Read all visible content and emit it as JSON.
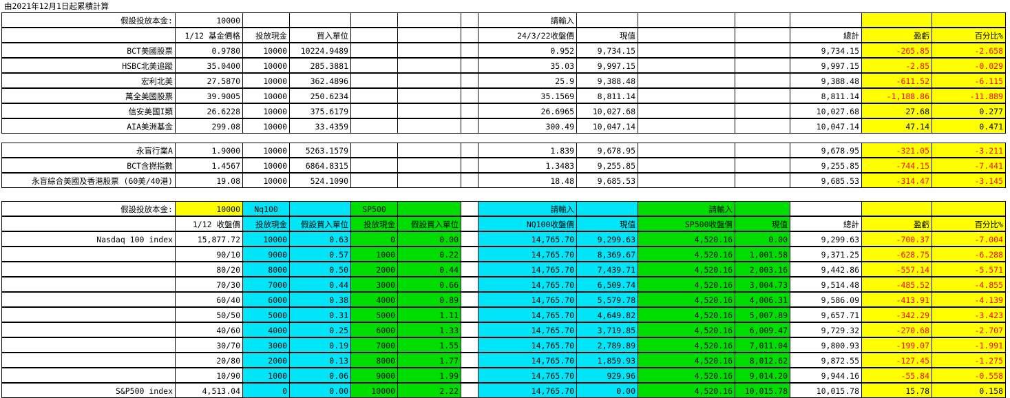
{
  "title": "由2021年12月1日起累積計算",
  "section1": {
    "header1": {
      "label": "假設投放本金:",
      "amount": "10000",
      "input_label": "請輸入"
    },
    "header2": {
      "price_label": "1/12 基金價格",
      "cash_label": "投放現金",
      "units_label": "買入單位",
      "close_label": "24/3/22收盤價",
      "value_label": "現值",
      "total_label": "總計",
      "pl_label": "盈虧",
      "pct_label": "百分比%"
    },
    "rows": [
      {
        "name": "BCT美國股票",
        "price": "0.9780",
        "cash": "10000",
        "units": "10224.9489",
        "close": "0.952",
        "value": "9,734.15",
        "total": "9,734.15",
        "pl": "-265.85",
        "pct": "-2.658"
      },
      {
        "name": "HSBC北美追蹤",
        "price": "35.0400",
        "cash": "10000",
        "units": "285.3881",
        "close": "35.03",
        "value": "9,997.15",
        "total": "9,997.15",
        "pl": "-2.85",
        "pct": "-0.029"
      },
      {
        "name": "宏利北美",
        "price": "27.5870",
        "cash": "10000",
        "units": "362.4896",
        "close": "25.9",
        "value": "9,388.48",
        "total": "9,388.48",
        "pl": "-611.52",
        "pct": "-6.115"
      },
      {
        "name": "萬全美國股票",
        "price": "39.9005",
        "cash": "10000",
        "units": "250.6234",
        "close": "35.1569",
        "value": "8,811.14",
        "total": "8,811.14",
        "pl": "-1,188.86",
        "pct": "-11.889"
      },
      {
        "name": "信安美國I類",
        "price": "26.6228",
        "cash": "10000",
        "units": "375.6179",
        "close": "26.6965",
        "value": "10,027.68",
        "total": "10,027.68",
        "pl": "27.68",
        "pct": "0.277"
      },
      {
        "name": "AIA美洲基金",
        "price": "299.08",
        "cash": "10000",
        "units": "33.4359",
        "close": "300.49",
        "value": "10,047.14",
        "total": "10,047.14",
        "pl": "47.14",
        "pct": "0.471"
      }
    ]
  },
  "section2": {
    "rows": [
      {
        "name": "永盲行業A",
        "price": "1.9000",
        "cash": "10000",
        "units": "5263.1579",
        "close": "1.839",
        "value": "9,678.95",
        "total": "9,678.95",
        "pl": "-321.05",
        "pct": "-3.211"
      },
      {
        "name": "BCT含撚指數",
        "price": "1.4567",
        "cash": "10000",
        "units": "6864.8315",
        "close": "1.3483",
        "value": "9,255.85",
        "total": "9,255.85",
        "pl": "-744.15",
        "pct": "-7.441"
      },
      {
        "name": "永盲綜合美國及香港股票 (60美/40港)",
        "price": "19.08",
        "cash": "10000",
        "units": "524.1090",
        "close": "18.48",
        "value": "9,685.53",
        "total": "9,685.53",
        "pl": "-314.47",
        "pct": "-3.145"
      }
    ]
  },
  "section3": {
    "header1": {
      "label": "假設投放本金:",
      "amount": "10000",
      "nq": "Nq100",
      "sp": "SP500",
      "input1": "請輸入",
      "input2": "請輸入"
    },
    "header2": {
      "close_label": "1/12 收盤價",
      "cash_nq": "投放現金",
      "units_nq": "假設買入單位",
      "cash_sp": "投放現金",
      "units_sp": "假設買入單位",
      "nq_close": "NQ100收盤價",
      "nq_value": "現值",
      "sp_close": "SP500收盤價",
      "sp_value": "現值",
      "total": "總計",
      "pl": "盈虧",
      "pct": "百分比%"
    },
    "rows": [
      {
        "name": "Nasdaq 100 index",
        "close": "15,877.72",
        "cash_nq": "10000",
        "units_nq": "0.63",
        "cash_sp": "0",
        "units_sp": "0.00",
        "nq_close": "14,765.70",
        "nq_value": "9,299.63",
        "sp_close": "4,520.16",
        "sp_value": "0.00",
        "total": "9,299.63",
        "pl": "-700.37",
        "pct": "-7.004"
      },
      {
        "name": "",
        "close": "90/10",
        "cash_nq": "9000",
        "units_nq": "0.57",
        "cash_sp": "1000",
        "units_sp": "0.22",
        "nq_close": "14,765.70",
        "nq_value": "8,369.67",
        "sp_close": "4,520.16",
        "sp_value": "1,001.58",
        "total": "9,371.25",
        "pl": "-628.75",
        "pct": "-6.288"
      },
      {
        "name": "",
        "close": "80/20",
        "cash_nq": "8000",
        "units_nq": "0.50",
        "cash_sp": "2000",
        "units_sp": "0.44",
        "nq_close": "14,765.70",
        "nq_value": "7,439.71",
        "sp_close": "4,520.16",
        "sp_value": "2,003.16",
        "total": "9,442.86",
        "pl": "-557.14",
        "pct": "-5.571"
      },
      {
        "name": "",
        "close": "70/30",
        "cash_nq": "7000",
        "units_nq": "0.44",
        "cash_sp": "3000",
        "units_sp": "0.66",
        "nq_close": "14,765.70",
        "nq_value": "6,509.74",
        "sp_close": "4,520.16",
        "sp_value": "3,004.73",
        "total": "9,514.48",
        "pl": "-485.52",
        "pct": "-4.855"
      },
      {
        "name": "",
        "close": "60/40",
        "cash_nq": "6000",
        "units_nq": "0.38",
        "cash_sp": "4000",
        "units_sp": "0.89",
        "nq_close": "14,765.70",
        "nq_value": "5,579.78",
        "sp_close": "4,520.16",
        "sp_value": "4,006.31",
        "total": "9,586.09",
        "pl": "-413.91",
        "pct": "-4.139"
      },
      {
        "name": "",
        "close": "50/50",
        "cash_nq": "5000",
        "units_nq": "0.31",
        "cash_sp": "5000",
        "units_sp": "1.11",
        "nq_close": "14,765.70",
        "nq_value": "4,649.82",
        "sp_close": "4,520.16",
        "sp_value": "5,007.89",
        "total": "9,657.71",
        "pl": "-342.29",
        "pct": "-3.423"
      },
      {
        "name": "",
        "close": "40/60",
        "cash_nq": "4000",
        "units_nq": "0.25",
        "cash_sp": "6000",
        "units_sp": "1.33",
        "nq_close": "14,765.70",
        "nq_value": "3,719.85",
        "sp_close": "4,520.16",
        "sp_value": "6,009.47",
        "total": "9,729.32",
        "pl": "-270.68",
        "pct": "-2.707"
      },
      {
        "name": "",
        "close": "30/70",
        "cash_nq": "3000",
        "units_nq": "0.19",
        "cash_sp": "7000",
        "units_sp": "1.55",
        "nq_close": "14,765.70",
        "nq_value": "2,789.89",
        "sp_close": "4,520.16",
        "sp_value": "7,011.04",
        "total": "9,800.93",
        "pl": "-199.07",
        "pct": "-1.991"
      },
      {
        "name": "",
        "close": "20/80",
        "cash_nq": "2000",
        "units_nq": "0.13",
        "cash_sp": "8000",
        "units_sp": "1.77",
        "nq_close": "14,765.70",
        "nq_value": "1,859.93",
        "sp_close": "4,520.16",
        "sp_value": "8,012.62",
        "total": "9,872.55",
        "pl": "-127.45",
        "pct": "-1.275"
      },
      {
        "name": "",
        "close": "10/90",
        "cash_nq": "1000",
        "units_nq": "0.06",
        "cash_sp": "9000",
        "units_sp": "1.99",
        "nq_close": "14,765.70",
        "nq_value": "929.96",
        "sp_close": "4,520.16",
        "sp_value": "9,014.20",
        "total": "9,944.16",
        "pl": "-55.84",
        "pct": "-0.558"
      },
      {
        "name": "S&P500 index",
        "close": "4,513.04",
        "cash_nq": "0",
        "units_nq": "0.00",
        "cash_sp": "10000",
        "units_sp": "2.22",
        "nq_close": "14,765.70",
        "nq_value": "0.00",
        "sp_close": "4,520.16",
        "sp_value": "10,015.78",
        "total": "10,015.78",
        "pl": "15.78",
        "pct": "0.158"
      }
    ]
  },
  "colors": {
    "yellow": "#ffff00",
    "cyan": "#00e5f7",
    "green": "#00dd00",
    "negative": "#ff0000"
  }
}
